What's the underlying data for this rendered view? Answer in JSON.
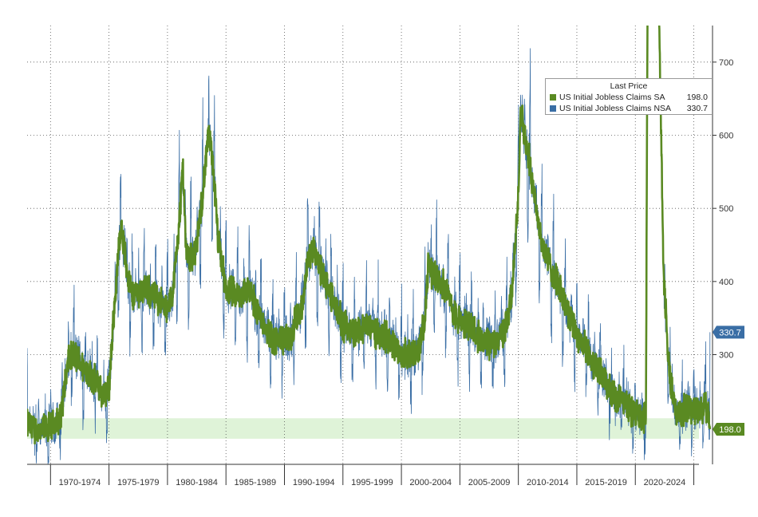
{
  "chart_data": {
    "type": "line",
    "title": "",
    "xlabel": "",
    "ylabel": "",
    "x_range": [
      1967.0,
      2025.6
    ],
    "ylim": [
      150,
      750
    ],
    "y_ticks": [
      300,
      400,
      500,
      600,
      700
    ],
    "y_axis_side": "right",
    "grid": true,
    "x_tick_labels": [
      {
        "label": "1970-1974",
        "start": 1969.0,
        "end": 1974.0
      },
      {
        "label": "1975-1979",
        "start": 1974.0,
        "end": 1979.0
      },
      {
        "label": "1980-1984",
        "start": 1979.0,
        "end": 1984.0
      },
      {
        "label": "1985-1989",
        "start": 1984.0,
        "end": 1989.0
      },
      {
        "label": "1990-1994",
        "start": 1989.0,
        "end": 1994.0
      },
      {
        "label": "1995-1999",
        "start": 1994.0,
        "end": 1999.0
      },
      {
        "label": "2000-2004",
        "start": 1999.0,
        "end": 2004.0
      },
      {
        "label": "2005-2009",
        "start": 2004.0,
        "end": 2009.0
      },
      {
        "label": "2010-2014",
        "start": 2009.0,
        "end": 2014.0
      },
      {
        "label": "2015-2019",
        "start": 2014.0,
        "end": 2019.0
      },
      {
        "label": "2020-2024",
        "start": 2019.0,
        "end": 2024.0
      }
    ],
    "highlight_band": {
      "y_from": 185,
      "y_to": 213,
      "color": "#dff3d8"
    },
    "legend": {
      "title": "Last Price",
      "placement": "top-right"
    },
    "series": [
      {
        "name": "US Initial Jobless Claims SA",
        "color": "#5a8a22",
        "last_value": "198.0",
        "anchors_x": [
          1967.0,
          1968.0,
          1969.0,
          1969.8,
          1970.5,
          1971.0,
          1972.0,
          1973.0,
          1973.5,
          1974.0,
          1974.3,
          1975.0,
          1975.5,
          1976.0,
          1977.0,
          1978.0,
          1979.0,
          1979.5,
          1980.0,
          1980.3,
          1980.6,
          1981.0,
          1981.5,
          1982.0,
          1982.5,
          1982.9,
          1983.3,
          1984.0,
          1985.0,
          1986.0,
          1987.0,
          1988.0,
          1989.0,
          1989.5,
          1990.0,
          1990.5,
          1991.0,
          1991.5,
          1992.0,
          1993.0,
          1994.0,
          1995.0,
          1996.0,
          1997.0,
          1998.0,
          1999.0,
          2000.0,
          2000.5,
          2001.0,
          2001.3,
          2001.8,
          2002.5,
          2003.0,
          2003.5,
          2004.0,
          2005.0,
          2006.0,
          2007.0,
          2008.0,
          2008.5,
          2009.0,
          2009.2,
          2009.5,
          2010.0,
          2011.0,
          2012.0,
          2013.0,
          2014.0,
          2015.0,
          2016.0,
          2017.0,
          2018.0,
          2019.0,
          2019.9,
          2020.15,
          2020.22,
          2020.3,
          2020.6,
          2021.0,
          2021.4,
          2021.8,
          2022.0,
          2022.5,
          2023.0,
          2023.5,
          2024.0,
          2024.5,
          2025.0,
          2025.4
        ],
        "anchors_y": [
          205,
          195,
          200,
          210,
          290,
          300,
          280,
          260,
          245,
          250,
          330,
          480,
          420,
          380,
          390,
          380,
          360,
          390,
          480,
          560,
          440,
          430,
          450,
          520,
          600,
          560,
          460,
          390,
          380,
          390,
          350,
          320,
          320,
          320,
          350,
          360,
          430,
          450,
          420,
          380,
          340,
          330,
          340,
          330,
          320,
          300,
          300,
          305,
          350,
          420,
          410,
          400,
          380,
          355,
          345,
          340,
          315,
          315,
          340,
          390,
          520,
          640,
          600,
          560,
          450,
          410,
          370,
          330,
          300,
          275,
          245,
          235,
          220,
          210,
          1200,
          3200,
          2500,
          1400,
          800,
          420,
          300,
          260,
          220,
          220,
          230,
          225,
          225,
          230,
          210
        ],
        "anchor_ranges": {
          "amplitude_min": 10,
          "amplitude_max": 25
        },
        "points": []
      },
      {
        "name": "US Initial Jobless Claims NSA",
        "color": "#3a6ea5",
        "last_value": "330.7",
        "spike_factor": 1.45,
        "points": []
      }
    ]
  }
}
